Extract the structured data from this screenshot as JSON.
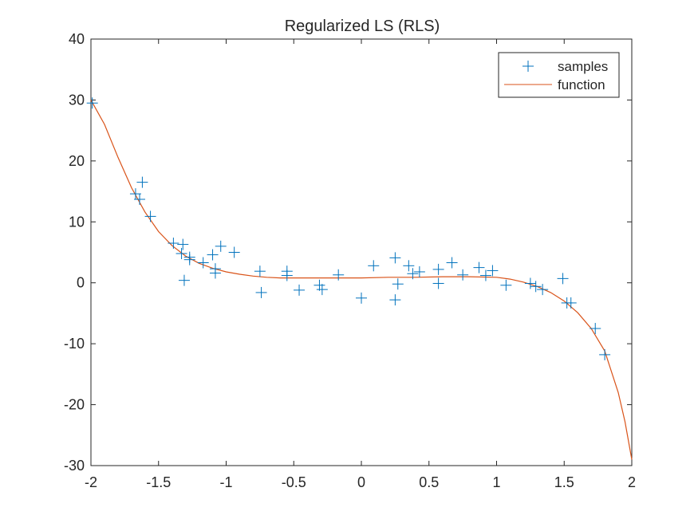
{
  "colors": {
    "samples": "#0072BD",
    "function": "#D95319",
    "axes": "#262626"
  },
  "chart_data": {
    "type": "scatter",
    "title": "Regularized LS (RLS)",
    "xlabel": "",
    "ylabel": "",
    "xlim": [
      -2,
      2
    ],
    "ylim": [
      -30,
      40
    ],
    "x_ticks": [
      -2,
      -1.5,
      -1,
      -0.5,
      0,
      0.5,
      1,
      1.5,
      2
    ],
    "x_tick_labels": [
      "-2",
      "-1.5",
      "-1",
      "-0.5",
      "0",
      "0.5",
      "1",
      "1.5",
      "2"
    ],
    "y_ticks": [
      40,
      30,
      20,
      10,
      0,
      -10,
      -20,
      -30
    ],
    "y_tick_labels": [
      "40",
      "30",
      "20",
      "10",
      "0",
      "-10",
      "-20",
      "-30"
    ],
    "grid": false,
    "legend_position": "top-right",
    "series": [
      {
        "name": "samples",
        "type": "scatter",
        "marker": "+",
        "points": [
          [
            -1.99,
            29.5
          ],
          [
            -1.67,
            14.6
          ],
          [
            -1.64,
            13.7
          ],
          [
            -1.62,
            16.5
          ],
          [
            -1.56,
            10.9
          ],
          [
            -1.39,
            6.5
          ],
          [
            -1.33,
            4.8
          ],
          [
            -1.32,
            6.3
          ],
          [
            -1.31,
            0.4
          ],
          [
            -1.27,
            3.8
          ],
          [
            -1.27,
            4.2
          ],
          [
            -1.17,
            3.3
          ],
          [
            -1.1,
            4.6
          ],
          [
            -1.08,
            2.3
          ],
          [
            -1.08,
            1.6
          ],
          [
            -1.04,
            6.0
          ],
          [
            -0.94,
            5.0
          ],
          [
            -0.75,
            1.9
          ],
          [
            -0.74,
            -1.6
          ],
          [
            -0.55,
            1.2
          ],
          [
            -0.55,
            1.9
          ],
          [
            -0.46,
            -1.2
          ],
          [
            -0.31,
            -0.4
          ],
          [
            -0.29,
            -1.1
          ],
          [
            -0.17,
            1.3
          ],
          [
            0.0,
            -2.5
          ],
          [
            0.09,
            2.8
          ],
          [
            0.25,
            4.1
          ],
          [
            0.25,
            -2.8
          ],
          [
            0.27,
            -0.2
          ],
          [
            0.35,
            2.8
          ],
          [
            0.38,
            1.5
          ],
          [
            0.43,
            1.8
          ],
          [
            0.57,
            2.2
          ],
          [
            0.57,
            -0.1
          ],
          [
            0.67,
            3.3
          ],
          [
            0.75,
            1.3
          ],
          [
            0.87,
            2.5
          ],
          [
            0.92,
            1.2
          ],
          [
            0.97,
            2.0
          ],
          [
            1.07,
            -0.4
          ],
          [
            1.25,
            -0.1
          ],
          [
            1.29,
            -0.6
          ],
          [
            1.34,
            -1.1
          ],
          [
            1.49,
            0.7
          ],
          [
            1.52,
            -3.3
          ],
          [
            1.55,
            -3.3
          ],
          [
            1.73,
            -7.5
          ],
          [
            1.8,
            -11.8
          ]
        ]
      },
      {
        "name": "function",
        "type": "line",
        "points": [
          [
            -2.0,
            30.0
          ],
          [
            -1.9,
            26.0
          ],
          [
            -1.8,
            20.6
          ],
          [
            -1.7,
            15.6
          ],
          [
            -1.6,
            11.6
          ],
          [
            -1.5,
            8.4
          ],
          [
            -1.4,
            6.1
          ],
          [
            -1.3,
            4.4
          ],
          [
            -1.2,
            3.2
          ],
          [
            -1.1,
            2.4
          ],
          [
            -1.0,
            1.8
          ],
          [
            -0.9,
            1.4
          ],
          [
            -0.8,
            1.1
          ],
          [
            -0.7,
            0.9
          ],
          [
            -0.6,
            0.8
          ],
          [
            -0.4,
            0.8
          ],
          [
            -0.2,
            0.8
          ],
          [
            0.0,
            0.8
          ],
          [
            0.2,
            0.9
          ],
          [
            0.4,
            0.9
          ],
          [
            0.6,
            1.0
          ],
          [
            0.8,
            1.0
          ],
          [
            1.0,
            0.9
          ],
          [
            1.1,
            0.6
          ],
          [
            1.2,
            0.1
          ],
          [
            1.3,
            -0.6
          ],
          [
            1.4,
            -1.6
          ],
          [
            1.5,
            -3.0
          ],
          [
            1.6,
            -4.9
          ],
          [
            1.7,
            -7.5
          ],
          [
            1.8,
            -11.2
          ],
          [
            1.9,
            -18.0
          ],
          [
            1.95,
            -22.8
          ],
          [
            2.0,
            -29.0
          ]
        ]
      }
    ]
  }
}
